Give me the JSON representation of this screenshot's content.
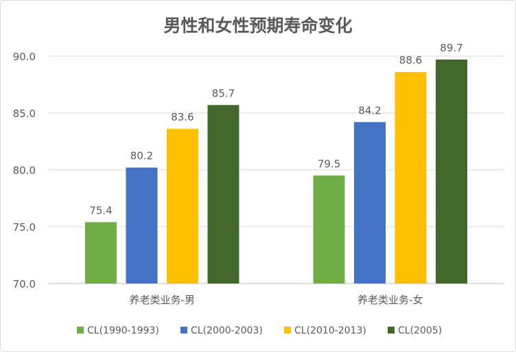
{
  "chart_data": {
    "type": "bar",
    "title": "男性和女性预期寿命变化",
    "categories": [
      "养老类业务-男",
      "养老类业务-女"
    ],
    "series": [
      {
        "name": "CL(1990-1993)",
        "values": [
          75.4,
          79.5
        ],
        "color": "#70AD47"
      },
      {
        "name": "CL(2000-2003)",
        "values": [
          80.2,
          84.2
        ],
        "color": "#4472C4"
      },
      {
        "name": "CL(2010-2013)",
        "values": [
          83.6,
          88.6
        ],
        "color": "#FFC000"
      },
      {
        "name": "CL(2005)",
        "values": [
          85.7,
          89.7
        ],
        "color": "#43682B"
      }
    ],
    "ylim": [
      70,
      90
    ],
    "yticks": [
      "70.0",
      "75.0",
      "80.0",
      "85.0",
      "90.0"
    ],
    "grid": true,
    "legend": "bottom",
    "data_labels": true
  }
}
